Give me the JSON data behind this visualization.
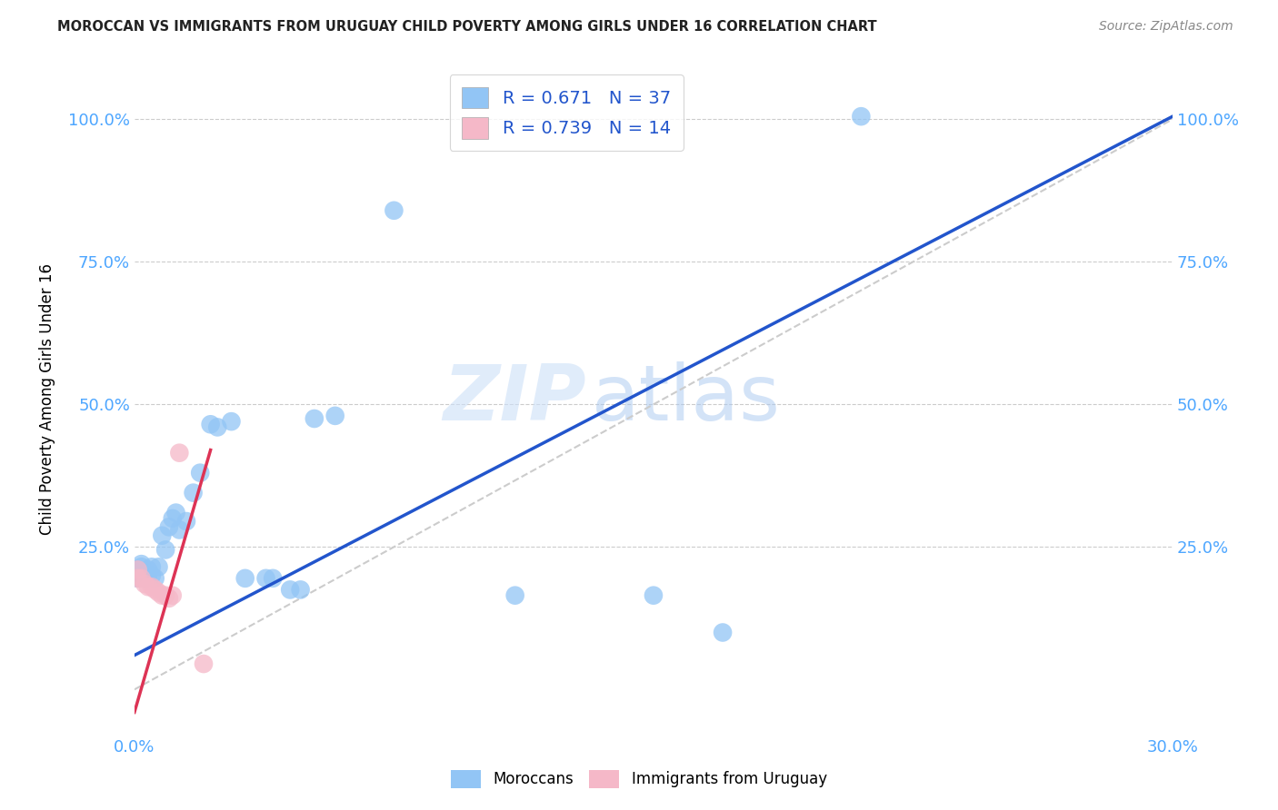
{
  "title": "MOROCCAN VS IMMIGRANTS FROM URUGUAY CHILD POVERTY AMONG GIRLS UNDER 16 CORRELATION CHART",
  "source": "Source: ZipAtlas.com",
  "tick_color": "#4da6ff",
  "ylabel": "Child Poverty Among Girls Under 16",
  "xlim": [
    0.0,
    0.3
  ],
  "ylim": [
    -0.08,
    1.1
  ],
  "xticks": [
    0.0,
    0.05,
    0.1,
    0.15,
    0.2,
    0.25,
    0.3
  ],
  "yticks": [
    0.25,
    0.5,
    0.75,
    1.0
  ],
  "ytick_labels": [
    "25.0%",
    "50.0%",
    "75.0%",
    "100.0%"
  ],
  "xtick_labels_left": [
    "0.0%"
  ],
  "xtick_labels_right": [
    "30.0%"
  ],
  "r_moroccan": 0.671,
  "n_moroccan": 37,
  "r_uruguay": 0.739,
  "n_uruguay": 14,
  "blue_color": "#92c5f5",
  "pink_color": "#f5b8c8",
  "trend_blue": "#2255cc",
  "trend_pink": "#dd3355",
  "watermark_zip": "ZIP",
  "watermark_atlas": "atlas",
  "legend_r_color": "#2255cc",
  "moroccan_x": [
    0.001,
    0.001,
    0.001,
    0.002,
    0.002,
    0.003,
    0.003,
    0.004,
    0.004,
    0.005,
    0.005,
    0.006,
    0.007,
    0.008,
    0.009,
    0.01,
    0.011,
    0.012,
    0.013,
    0.015,
    0.017,
    0.019,
    0.022,
    0.024,
    0.028,
    0.032,
    0.038,
    0.04,
    0.045,
    0.048,
    0.052,
    0.058,
    0.075,
    0.11,
    0.15,
    0.17,
    0.21
  ],
  "moroccan_y": [
    0.21,
    0.205,
    0.195,
    0.22,
    0.215,
    0.2,
    0.195,
    0.21,
    0.2,
    0.215,
    0.2,
    0.195,
    0.215,
    0.27,
    0.245,
    0.285,
    0.3,
    0.31,
    0.28,
    0.295,
    0.345,
    0.38,
    0.465,
    0.46,
    0.47,
    0.195,
    0.195,
    0.195,
    0.175,
    0.175,
    0.475,
    0.48,
    0.84,
    0.165,
    0.165,
    0.1,
    1.005
  ],
  "uruguay_x": [
    0.001,
    0.001,
    0.002,
    0.003,
    0.004,
    0.005,
    0.006,
    0.007,
    0.008,
    0.009,
    0.01,
    0.011,
    0.013,
    0.02
  ],
  "uruguay_y": [
    0.21,
    0.195,
    0.195,
    0.185,
    0.18,
    0.18,
    0.175,
    0.17,
    0.165,
    0.165,
    0.16,
    0.165,
    0.415,
    0.045
  ],
  "blue_trendline_x0": 0.0,
  "blue_trendline_y0": 0.06,
  "blue_trendline_x1": 0.3,
  "blue_trendline_y1": 1.005,
  "pink_trendline_x0": 0.0,
  "pink_trendline_y0": -0.04,
  "pink_trendline_x1": 0.022,
  "pink_trendline_y1": 0.42,
  "ref_line_x0": 0.0,
  "ref_line_y0": 0.0,
  "ref_line_x1": 0.3,
  "ref_line_y1": 1.0
}
